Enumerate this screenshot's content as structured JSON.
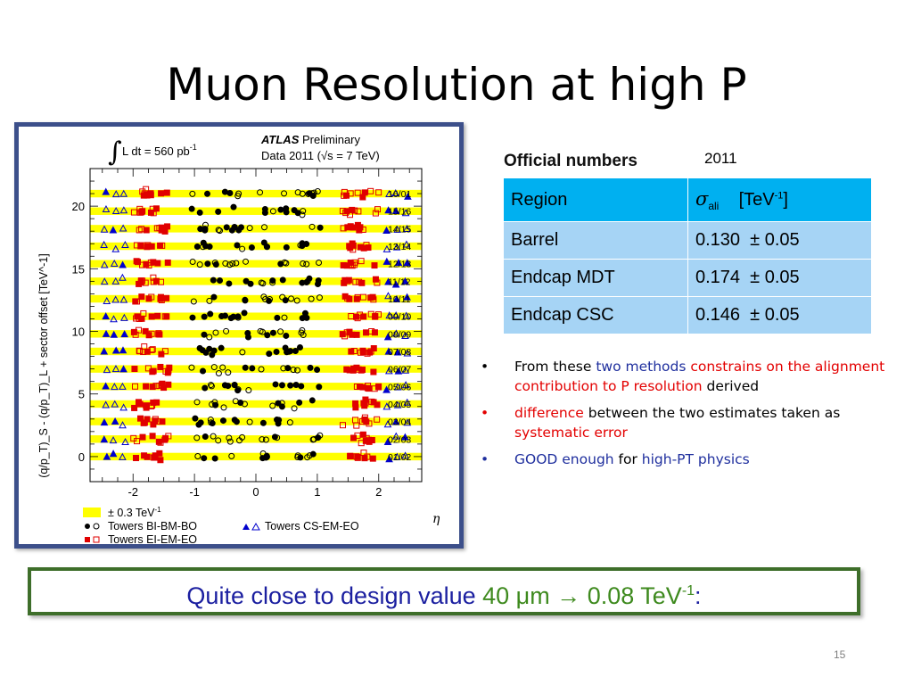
{
  "slide": {
    "title": "Muon Resolution at high P",
    "page_number": "15"
  },
  "chart_data": {
    "type": "scatter",
    "plot_header": {
      "lumi_text": "L dt = 560 pb",
      "lumi_sup": "-1",
      "atlas": "ATLAS",
      "status": "Preliminary",
      "data_text": "Data 2011 (",
      "sqrt_text": "s = 7 TeV)"
    },
    "ylabel": "(q/p_T)_S - (q/p_T)_L + sector offset [TeV^-1]",
    "xlabel": "η",
    "ylim": [
      -2,
      23
    ],
    "xlim": [
      -2.7,
      2.7
    ],
    "x_ticks": [
      -2,
      -1,
      0,
      1,
      2
    ],
    "y_ticks": [
      0,
      5,
      10,
      15,
      20
    ],
    "sector_labels": [
      "01/02",
      "02/03",
      "03/04",
      "04/05",
      "05/06",
      "06/07",
      "07/08",
      "08/09",
      "09/10",
      "10/11",
      "11/12",
      "12/13",
      "13/14",
      "14/15",
      "15/16",
      "16/01"
    ],
    "band_halfwidth": 0.3,
    "legend": {
      "band": "± 0.3 TeV",
      "band_sup": "-1",
      "bi": "Towers BI-BM-BO",
      "ei": "Towers EI-EM-EO",
      "cs": "Towers CS-EM-EO"
    },
    "colors": {
      "band": "#ffff00",
      "bi": "#000000",
      "ei": "#e00000",
      "cs": "#0000cc"
    }
  },
  "table": {
    "heading": "Official numbers",
    "year": "2011",
    "header": [
      "Region",
      "σ",
      "ali",
      "[TeV",
      "-1",
      "]"
    ],
    "rows": [
      {
        "region": "Barrel",
        "value": "0.130  ± 0.05"
      },
      {
        "region": "Endcap MDT",
        "value": "0.174  ± 0.05"
      },
      {
        "region": "Endcap CSC",
        "value": "0.146  ± 0.05"
      }
    ]
  },
  "bullets": {
    "b1": {
      "t1": "From these ",
      "t2": "two methods",
      "t3": " constrains on the alignment contribution to P resolution",
      "t4": " derived"
    },
    "b2": {
      "t1": "difference",
      "t2": " between the two estimates taken as ",
      "t3": "systematic error"
    },
    "b3": {
      "t1": "GOOD enough",
      "t2": " for ",
      "t3": "high-PT physics"
    }
  },
  "callout": {
    "t1": "Quite close to design value ",
    "t2": "40 μm",
    "t3": " → 0.08 TeV",
    "sup": "-1",
    "t4": ":"
  }
}
